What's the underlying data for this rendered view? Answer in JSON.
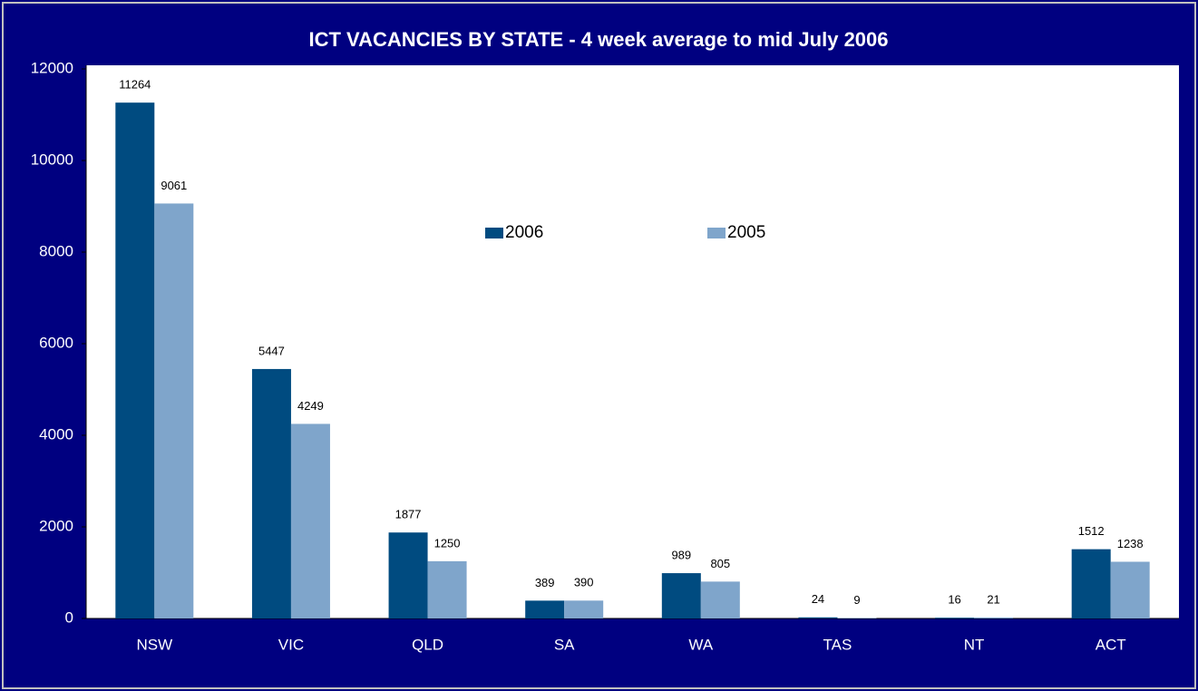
{
  "chart_data": {
    "type": "bar",
    "title": "ICT VACANCIES BY STATE  - 4 week average to mid July 2006",
    "categories": [
      "NSW",
      "VIC",
      "QLD",
      "SA",
      "WA",
      "TAS",
      "NT",
      "ACT"
    ],
    "series": [
      {
        "name": "2006",
        "color": "#004b80",
        "values": [
          11264,
          5447,
          1877,
          389,
          989,
          24,
          16,
          1512
        ]
      },
      {
        "name": "2005",
        "color": "#7fa5cb",
        "values": [
          9061,
          4249,
          1250,
          390,
          805,
          9,
          21,
          1238
        ]
      }
    ],
    "ylim": [
      0,
      12000
    ],
    "yticks": [
      0,
      2000,
      4000,
      6000,
      8000,
      10000,
      12000
    ],
    "grid": false,
    "legend": "top"
  }
}
